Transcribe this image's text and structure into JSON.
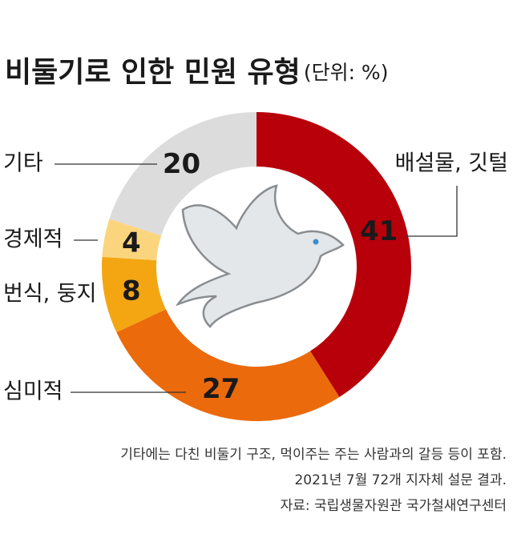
{
  "chart_data": {
    "type": "donut",
    "title": "비둘기로 인한 민원 유형",
    "subtitle": "(단위: %)",
    "categories": [
      "배설물, 깃털",
      "심미적",
      "번식, 둥지",
      "경제적",
      "기타"
    ],
    "values": [
      41,
      27,
      8,
      4,
      20
    ],
    "colors": [
      "#b8000b",
      "#eb6a0c",
      "#f3a612",
      "#fbd57e",
      "#dcdcdc"
    ]
  },
  "notes": [
    "기타에는 다친 비둘기 구조, 먹이주는 주는 사람과의 갈등 등이 포함.",
    "2021년 7월 72개 지자체 설문 결과.",
    "자료: 국립생물자원관 국가철새연구센터"
  ]
}
